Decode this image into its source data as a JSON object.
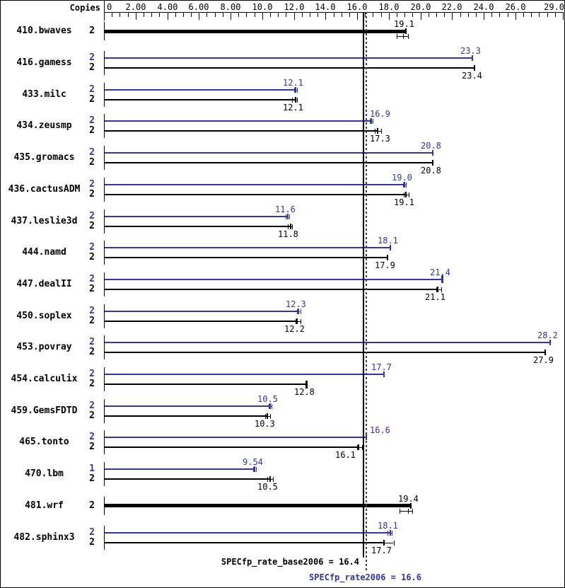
{
  "header": {
    "copies_label": "Copies"
  },
  "colors": {
    "peak": "#3333aa",
    "base": "#000000",
    "background": "#ffffff"
  },
  "chart_data": {
    "type": "bar",
    "orientation": "horizontal",
    "title": "",
    "xlabel": "",
    "ylabel": "",
    "axis": {
      "min": 0,
      "max": 29,
      "minor_tick_interval": 0.5,
      "major_ticks": [
        {
          "value": 0,
          "label": "0"
        },
        {
          "value": 2,
          "label": "2.00"
        },
        {
          "value": 4,
          "label": "4.00"
        },
        {
          "value": 6,
          "label": "6.00"
        },
        {
          "value": 8,
          "label": "8.00"
        },
        {
          "value": 10,
          "label": "10.0"
        },
        {
          "value": 12,
          "label": "12.0"
        },
        {
          "value": 14,
          "label": "14.0"
        },
        {
          "value": 16,
          "label": "16.0"
        },
        {
          "value": 18,
          "label": "18.0"
        },
        {
          "value": 20,
          "label": "20.0"
        },
        {
          "value": 22,
          "label": "22.0"
        },
        {
          "value": 24,
          "label": "24.0"
        },
        {
          "value": 26,
          "label": "26.0"
        },
        {
          "value": 29,
          "label": "29.0"
        }
      ]
    },
    "legend_note": "blue bar = peak (SPECfp_rate2006), black bar = base (SPECfp_rate_base2006)",
    "benchmarks": [
      {
        "name": "410.bwaves",
        "bars": [
          {
            "series": "base",
            "copies": "2",
            "value": 19.1,
            "label": "19.1",
            "thick": true,
            "whisker": [
              18.5,
              19.2
            ],
            "whisker_below": true
          }
        ]
      },
      {
        "name": "416.gamess",
        "bars": [
          {
            "series": "peak",
            "copies": "2",
            "value": 23.3,
            "label": "23.3"
          },
          {
            "series": "base",
            "copies": "2",
            "value": 23.4,
            "label": "23.4"
          }
        ]
      },
      {
        "name": "433.milc",
        "bars": [
          {
            "series": "peak",
            "copies": "2",
            "value": 12.1,
            "label": "12.1",
            "whisker": [
              12.0,
              12.2
            ]
          },
          {
            "series": "base",
            "copies": "2",
            "value": 12.1,
            "label": "12.1",
            "whisker": [
              11.9,
              12.2
            ]
          }
        ]
      },
      {
        "name": "434.zeusmp",
        "bars": [
          {
            "series": "peak",
            "copies": "2",
            "value": 16.9,
            "label": "16.9",
            "whisker": [
              16.8,
              17.0
            ]
          },
          {
            "series": "base",
            "copies": "2",
            "value": 17.3,
            "label": "17.3",
            "whisker": [
              17.1,
              17.5
            ]
          }
        ]
      },
      {
        "name": "435.gromacs",
        "bars": [
          {
            "series": "peak",
            "copies": "2",
            "value": 20.8,
            "label": "20.8"
          },
          {
            "series": "base",
            "copies": "2",
            "value": 20.8,
            "label": "20.8"
          }
        ]
      },
      {
        "name": "436.cactusADM",
        "bars": [
          {
            "series": "peak",
            "copies": "2",
            "value": 19.0,
            "label": "19.0",
            "whisker": [
              18.9,
              19.1
            ]
          },
          {
            "series": "base",
            "copies": "2",
            "value": 19.1,
            "label": "19.1",
            "whisker": [
              18.95,
              19.25
            ]
          }
        ]
      },
      {
        "name": "437.leslie3d",
        "bars": [
          {
            "series": "peak",
            "copies": "2",
            "value": 11.6,
            "label": "11.6",
            "whisker": [
              11.5,
              11.7
            ]
          },
          {
            "series": "base",
            "copies": "2",
            "value": 11.8,
            "label": "11.8",
            "whisker": [
              11.6,
              11.9
            ]
          }
        ]
      },
      {
        "name": "444.namd",
        "bars": [
          {
            "series": "peak",
            "copies": "2",
            "value": 18.1,
            "label": "18.1"
          },
          {
            "series": "base",
            "copies": "2",
            "value": 17.9,
            "label": "17.9"
          }
        ]
      },
      {
        "name": "447.dealII",
        "bars": [
          {
            "series": "peak",
            "copies": "2",
            "value": 21.4,
            "label": "21.4",
            "thick_cap": true
          },
          {
            "series": "base",
            "copies": "2",
            "value": 21.1,
            "label": "21.1",
            "whisker": [
              21.0,
              21.3
            ]
          }
        ]
      },
      {
        "name": "450.soplex",
        "bars": [
          {
            "series": "peak",
            "copies": "2",
            "value": 12.3,
            "label": "12.3",
            "whisker": [
              12.2,
              12.4
            ]
          },
          {
            "series": "base",
            "copies": "2",
            "value": 12.2,
            "label": "12.2",
            "whisker": [
              12.1,
              12.4
            ]
          }
        ]
      },
      {
        "name": "453.povray",
        "bars": [
          {
            "series": "peak",
            "copies": "2",
            "value": 28.2,
            "label": "28.2"
          },
          {
            "series": "base",
            "copies": "2",
            "value": 27.9,
            "label": "27.9"
          }
        ]
      },
      {
        "name": "454.calculix",
        "bars": [
          {
            "series": "peak",
            "copies": "2",
            "value": 17.7,
            "label": "17.7"
          },
          {
            "series": "base",
            "copies": "2",
            "value": 12.8,
            "label": "12.8",
            "thick_cap": true
          }
        ]
      },
      {
        "name": "459.GemsFDTD",
        "bars": [
          {
            "series": "peak",
            "copies": "2",
            "value": 10.5,
            "label": "10.5",
            "whisker": [
              10.4,
              10.6
            ]
          },
          {
            "series": "base",
            "copies": "2",
            "value": 10.3,
            "label": "10.3",
            "whisker": [
              10.2,
              10.5
            ]
          }
        ]
      },
      {
        "name": "465.tonto",
        "bars": [
          {
            "series": "peak",
            "copies": "2",
            "value": 16.6,
            "label": "16.6"
          },
          {
            "series": "base",
            "copies": "2",
            "value": 16.1,
            "label": "16.1",
            "whisker": [
              16.0,
              16.3
            ]
          }
        ]
      },
      {
        "name": "470.lbm",
        "bars": [
          {
            "series": "peak",
            "copies": "1",
            "value": 9.54,
            "label": "9.54",
            "whisker": [
              9.45,
              9.6
            ]
          },
          {
            "series": "base",
            "copies": "2",
            "value": 10.5,
            "label": "10.5",
            "whisker": [
              10.3,
              10.7
            ]
          }
        ]
      },
      {
        "name": "481.wrf",
        "bars": [
          {
            "series": "base",
            "copies": "2",
            "value": 19.4,
            "label": "19.4",
            "thick": true,
            "whisker": [
              18.7,
              19.5
            ],
            "whisker_below": true
          }
        ]
      },
      {
        "name": "482.sphinx3",
        "bars": [
          {
            "series": "peak",
            "copies": "2",
            "value": 18.1,
            "label": "18.1",
            "whisker": [
              17.9,
              18.2
            ]
          },
          {
            "series": "base",
            "copies": "2",
            "value": 17.7,
            "label": "17.7",
            "whisker": [
              17.7,
              18.3
            ]
          }
        ]
      }
    ],
    "reference_lines": [
      {
        "series": "base",
        "value": 16.4,
        "style": "solid",
        "color": "#000000",
        "label": "SPECfp_rate_base2006 = 16.4"
      },
      {
        "series": "peak",
        "value": 16.6,
        "style": "dotted",
        "color": "#3333aa",
        "label": "SPECfp_rate2006 = 16.6"
      }
    ]
  }
}
